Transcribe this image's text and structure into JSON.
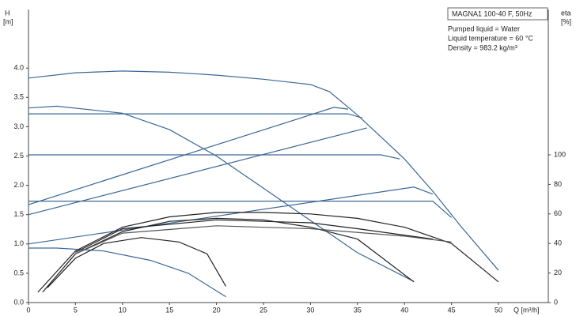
{
  "chart_data": {
    "type": "line",
    "y_label": "H",
    "y_unit": "[m]",
    "y2_label": "eta",
    "y2_unit": "[%]",
    "x_label": "Q [m³/h]",
    "info_title": "MAGNA1 100-40 F, 50Hz",
    "info_lines": [
      "Pumped liquid = Water",
      "Liquid temperature = 60 °C",
      "Density = 983.2 kg/m³"
    ],
    "xlim": [
      0,
      55.3
    ],
    "xticks": [
      0,
      5,
      10,
      15,
      20,
      25,
      30,
      35,
      40,
      45,
      50
    ],
    "ylim": [
      0,
      5
    ],
    "yticks": [
      {
        "value": 0,
        "label": "0.0"
      },
      0.5,
      {
        "value": 1,
        "label": "1.0"
      },
      1.5,
      {
        "value": 2,
        "label": "2.0"
      },
      2.5,
      {
        "value": 3,
        "label": "3.0"
      },
      3.5,
      {
        "value": 4,
        "label": "4.0"
      }
    ],
    "y2lim": [
      0,
      198.4
    ],
    "y2ticks": [
      0,
      20,
      40,
      60,
      80,
      100
    ],
    "series": [
      {
        "color": "#3b6796",
        "x": [
          0,
          5,
          10,
          15,
          20,
          25,
          30,
          32,
          35,
          38,
          40,
          43,
          46,
          50
        ],
        "values": [
          3.83,
          3.92,
          3.95,
          3.93,
          3.88,
          3.81,
          3.72,
          3.6,
          3.2,
          2.75,
          2.45,
          1.9,
          1.3,
          0.55
        ]
      },
      {
        "color": "#3b6796",
        "x": [
          0,
          3,
          10,
          15,
          20,
          25,
          30,
          35,
          41
        ],
        "values": [
          3.32,
          3.35,
          3.23,
          2.95,
          2.5,
          1.95,
          1.4,
          0.85,
          0.36
        ]
      },
      {
        "color": "#3b6796",
        "x": [
          0,
          34,
          35.5
        ],
        "values": [
          3.22,
          3.22,
          3.15
        ]
      },
      {
        "color": "#3b6796",
        "x": [
          0,
          37.5,
          39.5
        ],
        "values": [
          2.52,
          2.52,
          2.45
        ]
      },
      {
        "color": "#3b6796",
        "x": [
          0,
          43,
          45
        ],
        "values": [
          1.73,
          1.73,
          1.45
        ]
      },
      {
        "color": "#3b6796",
        "x": [
          0,
          32.5,
          34
        ],
        "values": [
          1.67,
          3.33,
          3.3
        ]
      },
      {
        "color": "#3b6796",
        "x": [
          0,
          36
        ],
        "values": [
          1.5,
          2.98
        ]
      },
      {
        "color": "#3b6796",
        "x": [
          0,
          41,
          43
        ],
        "values": [
          1.0,
          1.97,
          1.85
        ]
      },
      {
        "color": "#3b6796",
        "x": [
          0,
          3,
          8,
          13,
          17,
          21
        ],
        "values": [
          0.93,
          0.93,
          0.88,
          0.72,
          0.5,
          0.1
        ]
      },
      {
        "color": "#222222",
        "axis": "y2",
        "x": [
          1,
          5,
          10,
          15,
          20,
          25,
          30,
          35,
          40,
          45,
          50
        ],
        "values": [
          7,
          35,
          51,
          58,
          61,
          61,
          60,
          57,
          51,
          40,
          14
        ]
      },
      {
        "color": "#222222",
        "axis": "y2",
        "x": [
          1.5,
          5,
          10,
          15,
          20,
          25,
          30,
          35,
          41
        ],
        "values": [
          7,
          33,
          48,
          55,
          57,
          56,
          51,
          43,
          14
        ]
      },
      {
        "color": "#222222",
        "axis": "y2",
        "x": [
          2,
          5,
          8,
          12,
          16,
          19,
          21
        ],
        "values": [
          10,
          30,
          40,
          44,
          41,
          33,
          11
        ]
      },
      {
        "color": "#222222",
        "axis": "y2",
        "x": [
          5,
          10,
          20,
          30,
          35,
          43
        ],
        "values": [
          34,
          50,
          56,
          54,
          50,
          43
        ]
      },
      {
        "color": "#555555",
        "axis": "y2",
        "x": [
          5,
          10,
          20,
          30,
          40,
          45
        ],
        "values": [
          33,
          47,
          52,
          50,
          45,
          41
        ]
      }
    ]
  }
}
